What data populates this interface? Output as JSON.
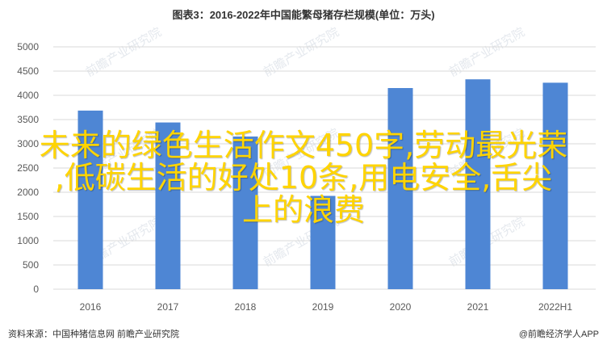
{
  "chart_data": {
    "type": "bar",
    "title": "图表3：2016-2022年中国能繁母猪存栏规模(单位：万头)",
    "categories": [
      "2016",
      "2017",
      "2018",
      "2019",
      "2020",
      "2021",
      "2022H1"
    ],
    "values": [
      3685,
      3440,
      3150,
      1925,
      4150,
      4330,
      4260
    ],
    "ylim": [
      0,
      5000
    ],
    "yticks": [
      0,
      500,
      1000,
      1500,
      2000,
      2500,
      3000,
      3500,
      4000,
      4500,
      5000
    ],
    "grid": true,
    "bar_color": "#4e86d4"
  },
  "overlay_text": {
    "line1": "未来的绿色生活作文450字,劳动最光荣",
    "line2": ",低碳生活的好处10条,用电安全,舌尖",
    "line3": "上的浪费",
    "color": "#ffd400"
  },
  "watermark": "前瞻产业研究院",
  "source": "资料来源：中国种猪信息网 前瞻产业研究院",
  "credit": "@前瞻经济学人APP"
}
